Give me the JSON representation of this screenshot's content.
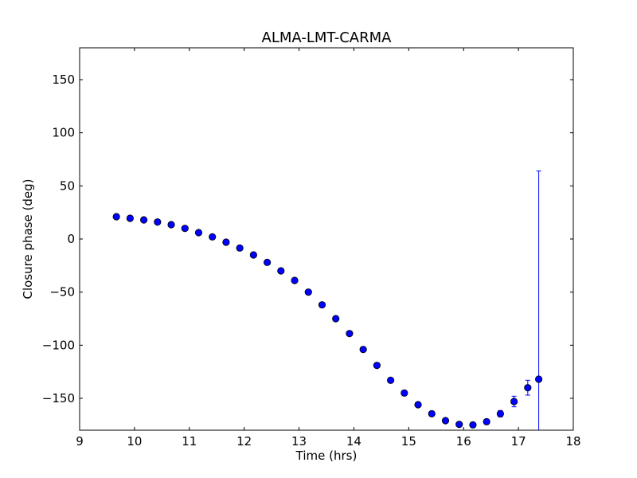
{
  "chart_data": {
    "type": "scatter",
    "title": "ALMA-LMT-CARMA",
    "xlabel": "Time (hrs)",
    "ylabel": "Closure phase (deg)",
    "xlim": [
      9,
      18
    ],
    "ylim": [
      -180,
      180
    ],
    "xticks": [
      "9",
      "10",
      "11",
      "12",
      "13",
      "14",
      "15",
      "16",
      "17",
      "18"
    ],
    "yticks": [
      "−150",
      "−100",
      "−50",
      "0",
      "50",
      "100",
      "150"
    ],
    "ytick_values": [
      -150,
      -100,
      -50,
      0,
      50,
      100,
      150
    ],
    "grid": false,
    "marker_color": "#0000ff",
    "errorbar_color": "#0000ff",
    "points": [
      {
        "x": 9.67,
        "y": 21,
        "err": 1
      },
      {
        "x": 9.92,
        "y": 19.5,
        "err": 1
      },
      {
        "x": 10.17,
        "y": 18,
        "err": 1
      },
      {
        "x": 10.42,
        "y": 16,
        "err": 1
      },
      {
        "x": 10.67,
        "y": 13.5,
        "err": 1
      },
      {
        "x": 10.92,
        "y": 10,
        "err": 1
      },
      {
        "x": 11.17,
        "y": 6,
        "err": 1
      },
      {
        "x": 11.42,
        "y": 2,
        "err": 1
      },
      {
        "x": 11.67,
        "y": -3,
        "err": 1
      },
      {
        "x": 11.92,
        "y": -8.5,
        "err": 1
      },
      {
        "x": 12.17,
        "y": -15,
        "err": 1
      },
      {
        "x": 12.42,
        "y": -22,
        "err": 1
      },
      {
        "x": 12.67,
        "y": -30,
        "err": 1
      },
      {
        "x": 12.92,
        "y": -39,
        "err": 1
      },
      {
        "x": 13.17,
        "y": -50,
        "err": 1
      },
      {
        "x": 13.42,
        "y": -62,
        "err": 1
      },
      {
        "x": 13.67,
        "y": -75,
        "err": 1
      },
      {
        "x": 13.92,
        "y": -89,
        "err": 1
      },
      {
        "x": 14.17,
        "y": -104,
        "err": 1
      },
      {
        "x": 14.42,
        "y": -119,
        "err": 1
      },
      {
        "x": 14.67,
        "y": -133,
        "err": 1
      },
      {
        "x": 14.92,
        "y": -145,
        "err": 1
      },
      {
        "x": 15.17,
        "y": -156,
        "err": 1
      },
      {
        "x": 15.42,
        "y": -164.5,
        "err": 1
      },
      {
        "x": 15.67,
        "y": -171,
        "err": 1
      },
      {
        "x": 15.92,
        "y": -174.5,
        "err": 1
      },
      {
        "x": 16.17,
        "y": -175,
        "err": 1
      },
      {
        "x": 16.42,
        "y": -172,
        "err": 2
      },
      {
        "x": 16.67,
        "y": -164.5,
        "err": 3
      },
      {
        "x": 16.92,
        "y": -153,
        "err": 5
      },
      {
        "x": 17.17,
        "y": -140,
        "err": 7
      },
      {
        "x": 17.37,
        "y": -132,
        "err": 196
      }
    ]
  }
}
